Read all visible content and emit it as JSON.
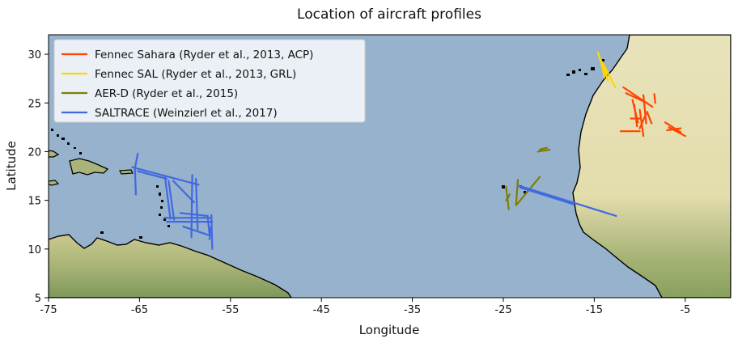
{
  "chart_data": {
    "type": "map",
    "title": "Location of aircraft profiles",
    "xlabel": "Longitude",
    "ylabel": "Latitude",
    "xlim": [
      -75,
      0
    ],
    "ylim": [
      5,
      32
    ],
    "xticks": [
      -75,
      -65,
      -55,
      -45,
      -35,
      -25,
      -15,
      -5
    ],
    "yticks": [
      5,
      10,
      15,
      20,
      25,
      30
    ],
    "legend_position": "upper-left",
    "colors": {
      "ocean": "#97b2cc",
      "land_light": "#e7e2b8",
      "land_green": "#a9b77a",
      "land_dark": "#7f9c5c",
      "coast": "#000000"
    },
    "series": [
      {
        "name": "Fennec Sahara (Ryder et al., 2013, ACP)",
        "color": "#ff4500",
        "tracks": [
          [
            [
              -11.8,
              26.6
            ],
            [
              -8.6,
              24.6
            ]
          ],
          [
            [
              -11.5,
              26.0
            ],
            [
              -9.2,
              25.0
            ]
          ],
          [
            [
              -10.8,
              25.3
            ],
            [
              -10.2,
              23.0
            ]
          ],
          [
            [
              -10.6,
              24.8
            ],
            [
              -10.3,
              22.6
            ]
          ],
          [
            [
              -10.0,
              24.3
            ],
            [
              -9.6,
              21.6
            ]
          ],
          [
            [
              -9.6,
              25.8
            ],
            [
              -9.3,
              22.9
            ]
          ],
          [
            [
              -9.2,
              24.1
            ],
            [
              -8.7,
              22.9
            ]
          ],
          [
            [
              -9.3,
              23.9
            ],
            [
              -10.0,
              22.4
            ]
          ],
          [
            [
              -11.0,
              23.4
            ],
            [
              -10.0,
              23.4
            ]
          ],
          [
            [
              -12.1,
              22.1
            ],
            [
              -10.0,
              22.1
            ]
          ],
          [
            [
              -8.4,
              25.9
            ],
            [
              -8.3,
              25.0
            ]
          ],
          [
            [
              -7.2,
              23.0
            ],
            [
              -5.5,
              22.0
            ]
          ],
          [
            [
              -6.8,
              22.5
            ],
            [
              -5.0,
              21.6
            ]
          ],
          [
            [
              -7.0,
              22.2
            ],
            [
              -5.5,
              22.4
            ]
          ]
        ]
      },
      {
        "name": "Fennec SAL (Ryder et al., 2013, GRL)",
        "color": "#ffd700",
        "tracks": [
          [
            [
              -14.6,
              30.2
            ],
            [
              -13.9,
              28.0
            ]
          ],
          [
            [
              -14.2,
              29.3
            ],
            [
              -13.9,
              27.6
            ]
          ],
          [
            [
              -14.0,
              29.0
            ],
            [
              -12.7,
              26.6
            ]
          ],
          [
            [
              -13.9,
              28.6
            ],
            [
              -13.5,
              27.3
            ]
          ]
        ]
      },
      {
        "name": "AER-D (Ryder et al., 2015)",
        "color": "#7f7f00",
        "tracks": [
          [
            [
              -24.7,
              16.4
            ],
            [
              -24.4,
              14.1
            ]
          ],
          [
            [
              -24.3,
              15.6
            ],
            [
              -24.7,
              15.0
            ]
          ],
          [
            [
              -23.4,
              17.1
            ],
            [
              -23.6,
              14.5
            ]
          ],
          [
            [
              -23.5,
              14.6
            ],
            [
              -21.0,
              17.4
            ]
          ],
          [
            [
              -21.2,
              20.0
            ],
            [
              -19.9,
              20.2
            ]
          ],
          [
            [
              -21.0,
              20.2
            ],
            [
              -20.2,
              20.4
            ]
          ]
        ]
      },
      {
        "name": "SALTRACE (Weinzierl et al., 2017)",
        "color": "#4169e1",
        "tracks": [
          [
            [
              -23.3,
              16.5
            ],
            [
              -12.6,
              13.4
            ]
          ],
          [
            [
              -23.1,
              16.3
            ],
            [
              -17.3,
              14.6
            ]
          ],
          [
            [
              -65.2,
              19.8
            ],
            [
              -65.5,
              18.3
            ]
          ],
          [
            [
              -65.8,
              18.4
            ],
            [
              -58.5,
              16.6
            ]
          ],
          [
            [
              -65.5,
              18.2
            ],
            [
              -65.4,
              15.6
            ]
          ],
          [
            [
              -65.2,
              18.0
            ],
            [
              -62.0,
              17.2
            ]
          ],
          [
            [
              -62.2,
              17.4
            ],
            [
              -61.6,
              13.1
            ]
          ],
          [
            [
              -61.8,
              17.0
            ],
            [
              -61.2,
              13.0
            ]
          ],
          [
            [
              -61.3,
              17.0
            ],
            [
              -59.0,
              14.8
            ]
          ],
          [
            [
              -62.2,
              13.2
            ],
            [
              -57.2,
              13.2
            ]
          ],
          [
            [
              -62.0,
              12.8
            ],
            [
              -57.0,
              12.8
            ]
          ],
          [
            [
              -59.2,
              17.6
            ],
            [
              -59.3,
              11.2
            ]
          ],
          [
            [
              -58.8,
              17.2
            ],
            [
              -58.6,
              12.0
            ]
          ],
          [
            [
              -57.1,
              13.5
            ],
            [
              -57.0,
              10.0
            ]
          ],
          [
            [
              -57.5,
              13.3
            ],
            [
              -57.3,
              11.5
            ]
          ],
          [
            [
              -60.2,
              12.3
            ],
            [
              -57.3,
              11.4
            ]
          ],
          [
            [
              -60.5,
              13.7
            ],
            [
              -57.5,
              13.4
            ]
          ],
          [
            [
              -57.2,
              12.2
            ],
            [
              -57.3,
              11.0
            ]
          ]
        ]
      }
    ]
  }
}
